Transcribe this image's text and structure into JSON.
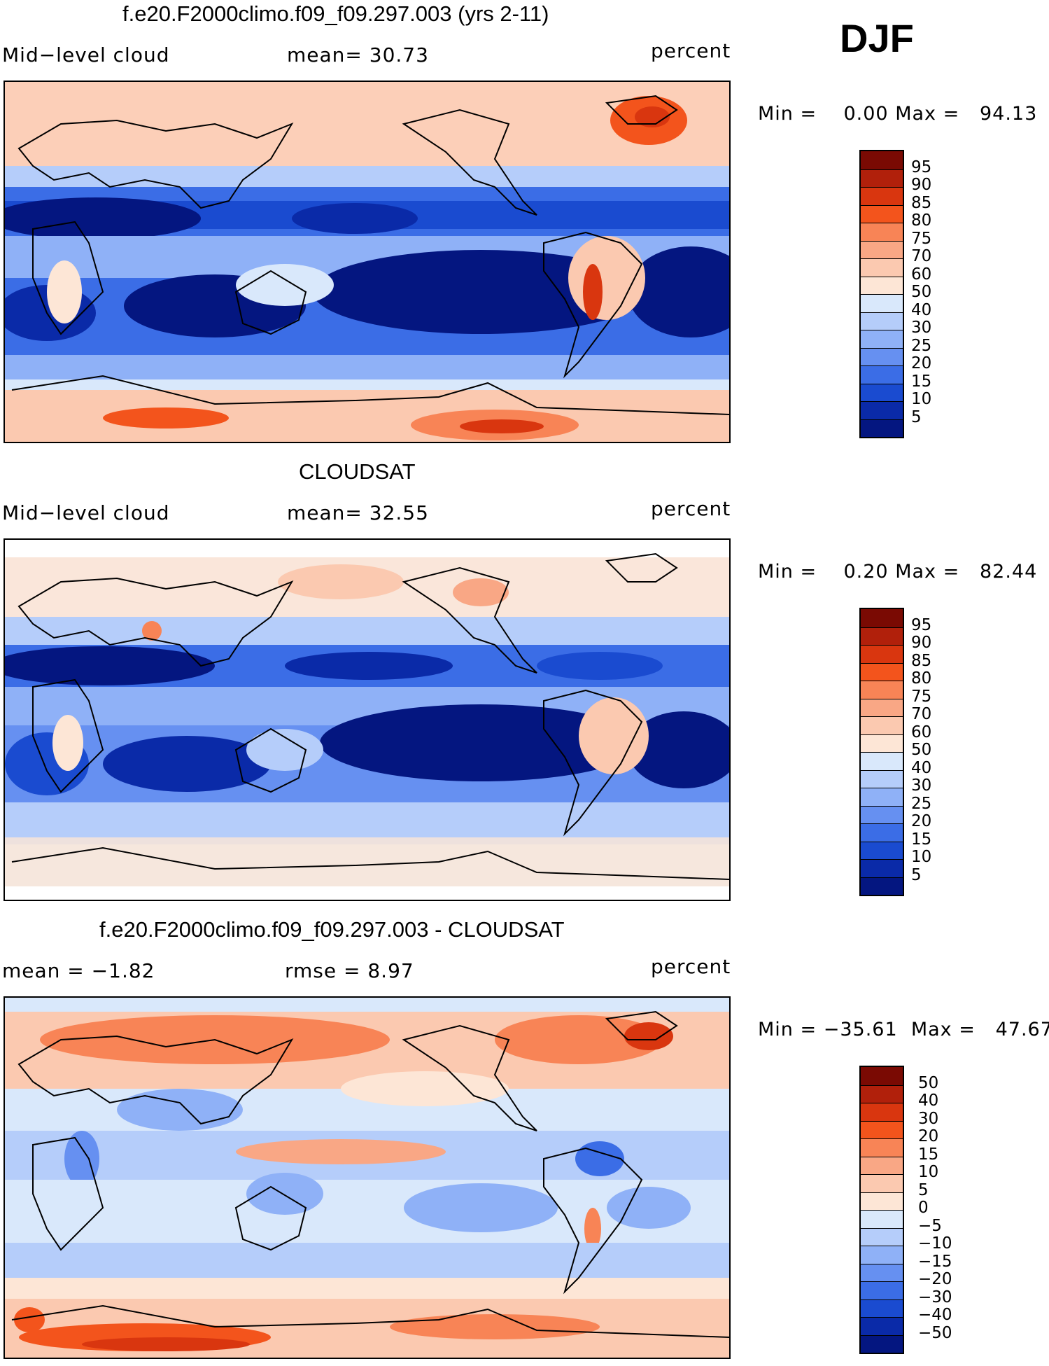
{
  "season_label": "DJF",
  "chart_data": [
    {
      "type": "heatmap",
      "title": "f.e20.F2000climo.f09_f09.297.003 (yrs 2-11)",
      "left_label": "Mid−level cloud",
      "mid_label": "mean=   30.73",
      "right_label": "percent",
      "variable": "Mid-level cloud",
      "mean": 30.73,
      "units": "percent",
      "min": 0.0,
      "max": 94.13,
      "min_text": "0.00",
      "max_text": "94.13",
      "levels": [
        5,
        10,
        15,
        20,
        25,
        30,
        40,
        50,
        60,
        70,
        75,
        80,
        85,
        90,
        95
      ],
      "level_labels": [
        "95",
        "90",
        "85",
        "80",
        "75",
        "70",
        "60",
        "50",
        "40",
        "30",
        "25",
        "20",
        "15",
        "10",
        "5"
      ],
      "colors": [
        "#7a0a03",
        "#b1200b",
        "#d9360f",
        "#f3541c",
        "#f88456",
        "#f9a785",
        "#fbc9b0",
        "#fde6d6",
        "#d9e8fb",
        "#b5cdfa",
        "#8fb1f7",
        "#6690f1",
        "#3b6de6",
        "#1a4bd0",
        "#0a2aa8",
        "#041680"
      ]
    },
    {
      "type": "heatmap",
      "title": "CLOUDSAT",
      "left_label": "Mid−level cloud",
      "mid_label": "mean=   32.55",
      "right_label": "percent",
      "variable": "Mid-level cloud",
      "mean": 32.55,
      "units": "percent",
      "min": 0.2,
      "max": 82.44,
      "min_text": "0.20",
      "max_text": "82.44",
      "levels": [
        5,
        10,
        15,
        20,
        25,
        30,
        40,
        50,
        60,
        70,
        75,
        80,
        85,
        90,
        95
      ],
      "level_labels": [
        "95",
        "90",
        "85",
        "80",
        "75",
        "70",
        "60",
        "50",
        "40",
        "30",
        "25",
        "20",
        "15",
        "10",
        "5"
      ],
      "colors": [
        "#7a0a03",
        "#b1200b",
        "#d9360f",
        "#f3541c",
        "#f88456",
        "#f9a785",
        "#fbc9b0",
        "#fde6d6",
        "#d9e8fb",
        "#b5cdfa",
        "#8fb1f7",
        "#6690f1",
        "#3b6de6",
        "#1a4bd0",
        "#0a2aa8",
        "#041680"
      ]
    },
    {
      "type": "heatmap",
      "title": "f.e20.F2000climo.f09_f09.297.003 - CLOUDSAT",
      "left_label": "mean =   −1.82",
      "mid_label": "rmse =    8.97",
      "right_label": "percent",
      "mean": -1.82,
      "rmse": 8.97,
      "units": "percent",
      "min": -35.61,
      "max": 47.67,
      "min_text": "−35.61",
      "max_text": "47.67",
      "levels": [
        -50,
        -40,
        -30,
        -20,
        -15,
        -10,
        -5,
        0,
        5,
        10,
        15,
        20,
        30,
        40,
        50
      ],
      "level_labels": [
        "50",
        "40",
        "30",
        "20",
        "15",
        "10",
        "5",
        "0",
        "−5",
        "−10",
        "−15",
        "−20",
        "−30",
        "−40",
        "−50"
      ],
      "colors": [
        "#7a0a03",
        "#b1200b",
        "#d9360f",
        "#f3541c",
        "#f88456",
        "#f9a785",
        "#fbc9b0",
        "#fde6d6",
        "#d9e8fb",
        "#b5cdfa",
        "#8fb1f7",
        "#6690f1",
        "#3b6de6",
        "#1a4bd0",
        "#0a2aa8",
        "#041680"
      ]
    }
  ],
  "minmax": {
    "min_label": "Min =",
    "max_label": "Max ="
  }
}
